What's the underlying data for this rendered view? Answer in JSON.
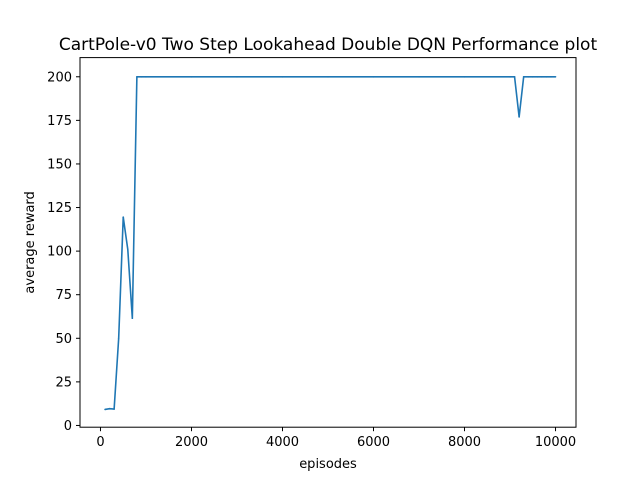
{
  "chart_data": {
    "type": "line",
    "title": "CartPole-v0 Two Step Lookahead Double DQN Performance plot",
    "xlabel": "episodes",
    "ylabel": "average reward",
    "xlim": [
      -450,
      10450
    ],
    "ylim": [
      -1,
      211
    ],
    "xticks": [
      0,
      2000,
      4000,
      6000,
      8000,
      10000
    ],
    "yticks": [
      0,
      25,
      50,
      75,
      100,
      125,
      150,
      175,
      200
    ],
    "grid": false,
    "legend": "none",
    "line_color": "#1f77b4",
    "series": [
      {
        "x": [
          100,
          200,
          300,
          400,
          500,
          600,
          700,
          800,
          900,
          1000,
          2000,
          3000,
          4000,
          5000,
          6000,
          7000,
          8000,
          9000,
          9100,
          9200,
          9300,
          9400,
          9500,
          9600,
          9700,
          9800,
          9900,
          10000
        ],
        "values": [
          9.2,
          9.6,
          9.4,
          50,
          119.5,
          101,
          61.5,
          200,
          200,
          200,
          200,
          200,
          200,
          200,
          200,
          200,
          200,
          200,
          200,
          177,
          200,
          200,
          200,
          200,
          200,
          200,
          200,
          200
        ]
      }
    ]
  }
}
